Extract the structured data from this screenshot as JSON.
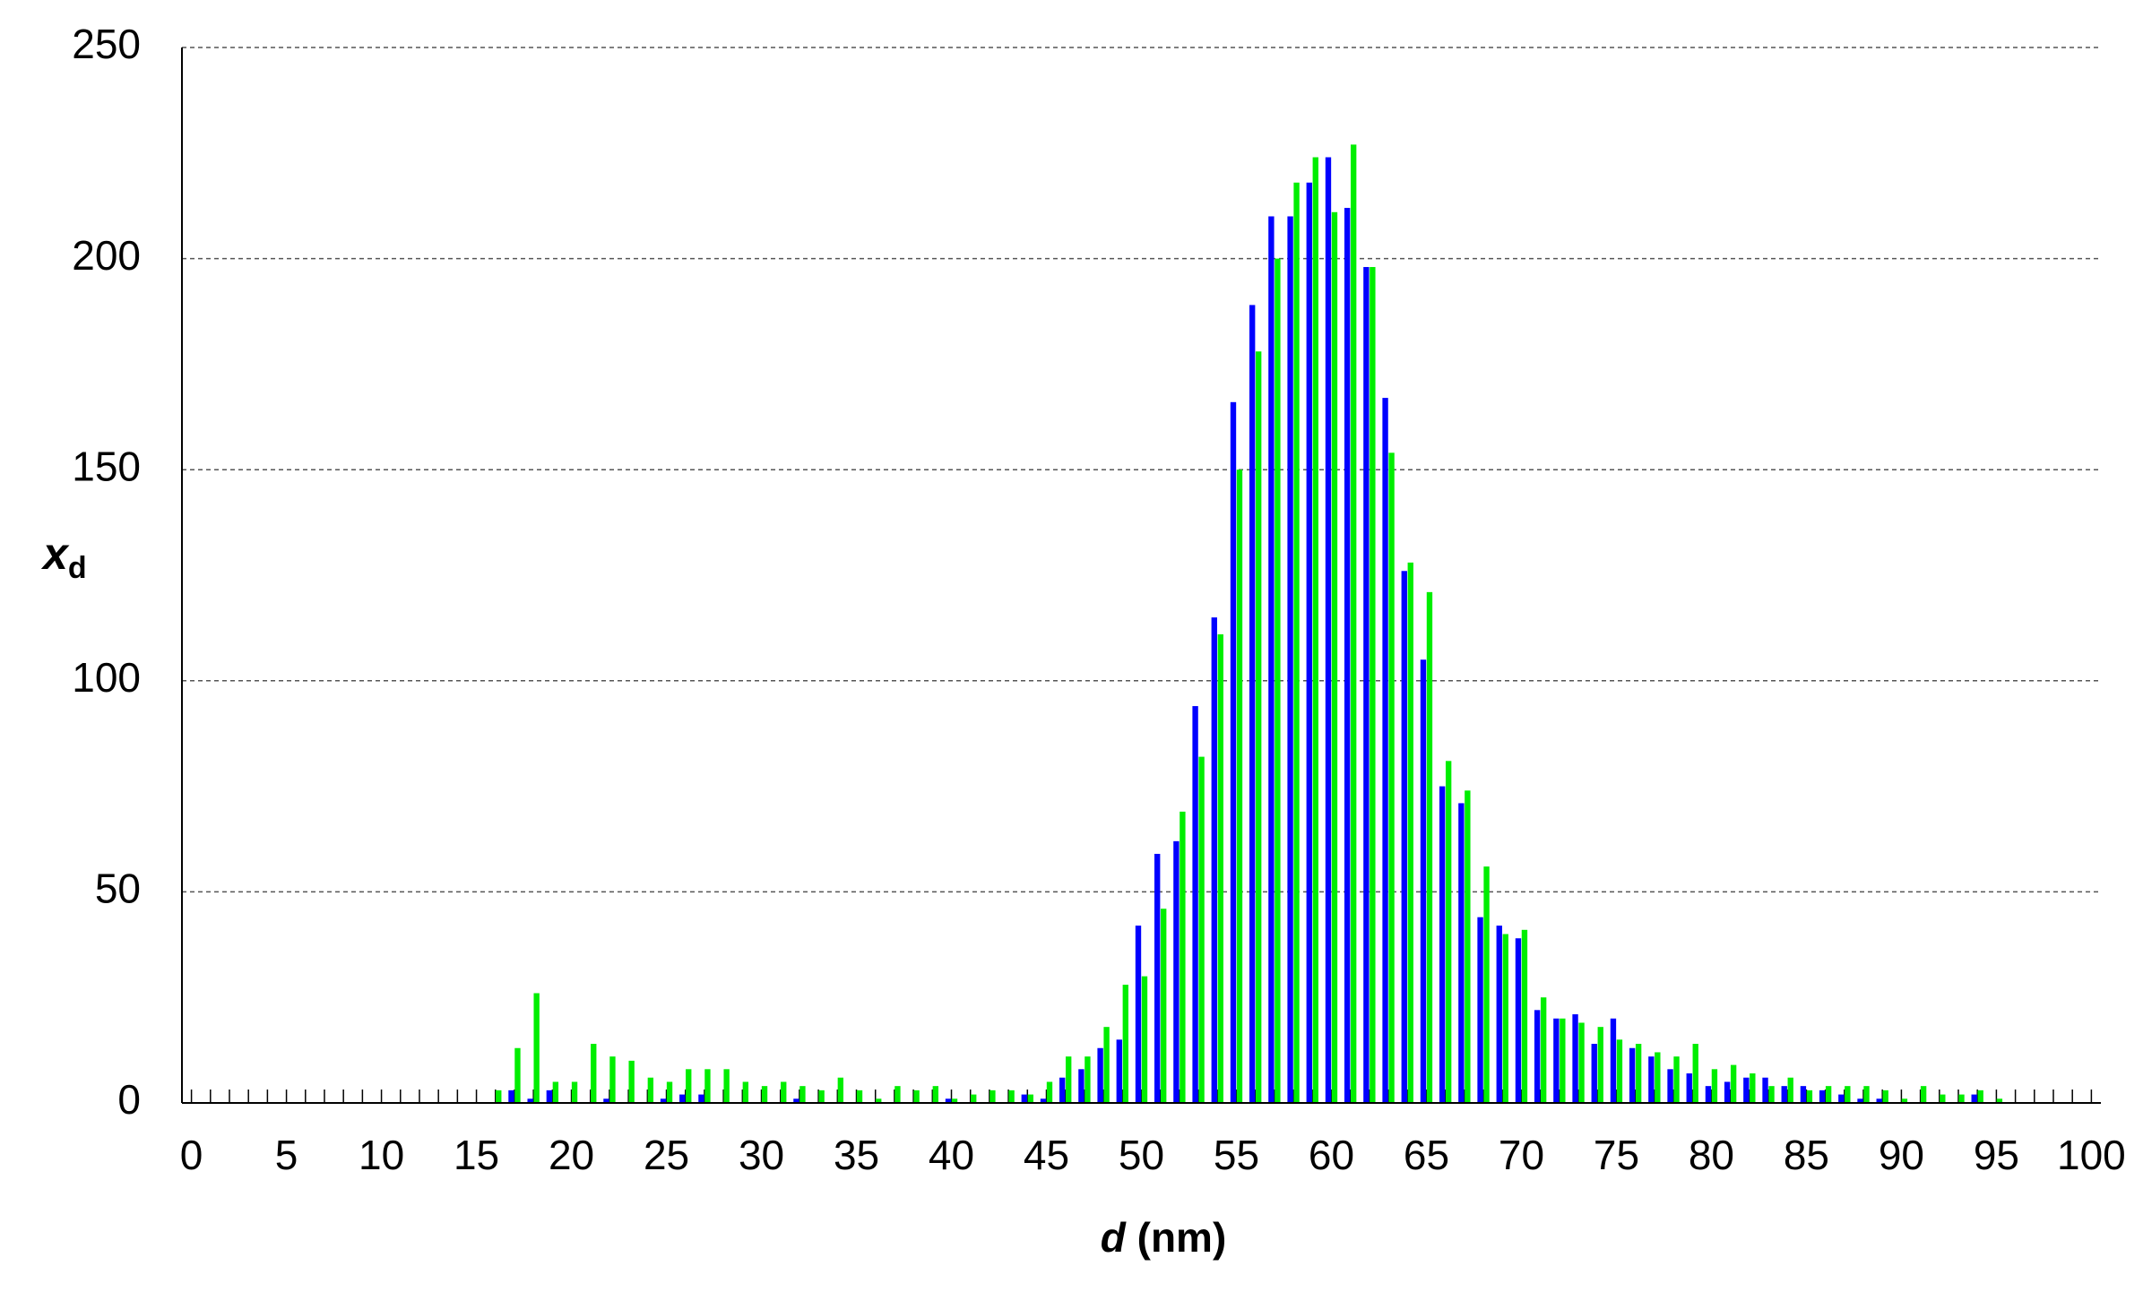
{
  "chart_data": {
    "type": "bar",
    "ylabel": "x",
    "ylabel_subscript": "d",
    "xlabel_variable": "d",
    "xlabel_unit": "(nm)",
    "x": [
      0,
      1,
      2,
      3,
      4,
      5,
      6,
      7,
      8,
      9,
      10,
      11,
      12,
      13,
      14,
      15,
      16,
      17,
      18,
      19,
      20,
      21,
      22,
      23,
      24,
      25,
      26,
      27,
      28,
      29,
      30,
      31,
      32,
      33,
      34,
      35,
      36,
      37,
      38,
      39,
      40,
      41,
      42,
      43,
      44,
      45,
      46,
      47,
      48,
      49,
      50,
      51,
      52,
      53,
      54,
      55,
      56,
      57,
      58,
      59,
      60,
      61,
      62,
      63,
      64,
      65,
      66,
      67,
      68,
      69,
      70,
      71,
      72,
      73,
      74,
      75,
      76,
      77,
      78,
      79,
      80,
      81,
      82,
      83,
      84,
      85,
      86,
      87,
      88,
      89,
      90,
      91,
      92,
      93,
      94,
      95,
      96,
      97,
      98,
      99,
      100
    ],
    "series": [
      {
        "color": "#0000ff",
        "values": [
          0,
          0,
          0,
          0,
          0,
          0,
          0,
          0,
          0,
          0,
          0,
          0,
          0,
          0,
          0,
          0,
          0,
          3,
          1,
          3,
          0,
          0,
          1,
          0,
          0,
          1,
          2,
          2,
          0,
          0,
          0,
          0,
          1,
          0,
          0,
          0,
          0,
          0,
          0,
          0,
          1,
          0,
          0,
          0,
          2,
          1,
          6,
          8,
          13,
          15,
          42,
          59,
          62,
          94,
          115,
          166,
          189,
          210,
          210,
          218,
          224,
          212,
          198,
          167,
          126,
          105,
          75,
          71,
          44,
          42,
          39,
          22,
          20,
          21,
          14,
          20,
          13,
          11,
          8,
          7,
          4,
          5,
          6,
          6,
          4,
          4,
          3,
          2,
          1,
          1,
          0,
          0,
          0,
          0,
          2,
          0,
          0,
          0,
          0,
          0,
          0
        ]
      },
      {
        "color": "#00ee00",
        "values": [
          0,
          0,
          0,
          0,
          0,
          0,
          0,
          0,
          0,
          0,
          0,
          0,
          0,
          0,
          0,
          0,
          3,
          13,
          26,
          5,
          5,
          14,
          11,
          10,
          6,
          5,
          8,
          8,
          8,
          5,
          4,
          5,
          4,
          3,
          6,
          3,
          1,
          4,
          3,
          4,
          1,
          2,
          3,
          3,
          2,
          5,
          11,
          11,
          18,
          28,
          30,
          46,
          69,
          82,
          111,
          150,
          178,
          200,
          218,
          224,
          211,
          227,
          198,
          154,
          128,
          121,
          81,
          74,
          56,
          40,
          41,
          25,
          20,
          19,
          18,
          15,
          14,
          12,
          11,
          14,
          8,
          9,
          7,
          4,
          6,
          3,
          4,
          4,
          4,
          3,
          1,
          4,
          2,
          2,
          3,
          1,
          0,
          0,
          0,
          0,
          0
        ]
      }
    ],
    "xlim": [
      -0.5,
      100.5
    ],
    "xticks": [
      0,
      5,
      10,
      15,
      20,
      25,
      30,
      35,
      40,
      45,
      50,
      55,
      60,
      65,
      70,
      75,
      80,
      85,
      90,
      95,
      100
    ],
    "xminorticks": [
      0,
      1,
      2,
      3,
      4,
      5,
      6,
      7,
      8,
      9,
      10,
      11,
      12,
      13,
      14,
      15,
      16,
      17,
      18,
      19,
      20,
      21,
      22,
      23,
      24,
      25,
      26,
      27,
      28,
      29,
      30,
      31,
      32,
      33,
      34,
      35,
      36,
      37,
      38,
      39,
      40,
      41,
      42,
      43,
      44,
      45,
      46,
      47,
      48,
      49,
      50,
      51,
      52,
      53,
      54,
      55,
      56,
      57,
      58,
      59,
      60,
      61,
      62,
      63,
      64,
      65,
      66,
      67,
      68,
      69,
      70,
      71,
      72,
      73,
      74,
      75,
      76,
      77,
      78,
      79,
      80,
      81,
      82,
      83,
      84,
      85,
      86,
      87,
      88,
      89,
      90,
      91,
      92,
      93,
      94,
      95,
      96,
      97,
      98,
      99,
      100
    ],
    "ylim": [
      0,
      250
    ],
    "yticks": [
      0,
      50,
      100,
      150,
      200,
      250
    ],
    "grid": true
  }
}
